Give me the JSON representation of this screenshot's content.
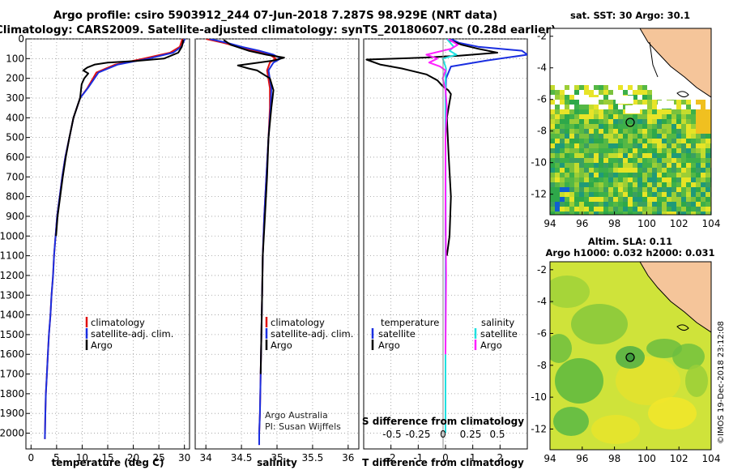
{
  "header": {
    "line1": "Argo profile: csiro 5903912_244 07-Jun-2018 7.287S 98.929E (NRT data)",
    "line2": "Climatology: CARS2009. Satellite-adjusted climatology: synTS_20180607.nc (0.28d earlier)"
  },
  "colors": {
    "climatology": "#e01010",
    "satellite": "#1a2ee0",
    "argo": "#000000",
    "sat_salinity": "#20e0e0",
    "argo_salinity": "#ff20ff",
    "land": "#f5c59a"
  },
  "chart_data": [
    {
      "type": "line",
      "id": "temperature",
      "xlabel": "temperature (deg C)",
      "ylabel": "",
      "xlim": [
        -1,
        31
      ],
      "ylim": [
        2080,
        0
      ],
      "xticks": [
        0,
        5,
        10,
        15,
        20,
        25,
        30
      ],
      "yticks": [
        0,
        100,
        200,
        300,
        400,
        500,
        600,
        700,
        800,
        900,
        1000,
        1100,
        1200,
        1300,
        1400,
        1500,
        1600,
        1700,
        1800,
        1900,
        2000
      ],
      "legend": [
        "climatology",
        "satellite-adj. clim.",
        "Argo"
      ],
      "series": [
        {
          "name": "climatology",
          "color": "#e01010",
          "x": [
            29.6,
            29.1,
            27.2,
            22.0,
            16.5,
            12.8,
            11.0,
            9.6,
            8.3,
            7.5,
            6.7,
            6.1,
            5.6,
            5.1,
            4.8,
            4.5,
            4.3,
            4.0,
            3.8,
            3.5,
            3.3,
            3.1,
            2.9,
            2.8,
            2.7
          ],
          "y": [
            0,
            40,
            70,
            100,
            130,
            170,
            250,
            300,
            400,
            500,
            600,
            700,
            800,
            900,
            1000,
            1100,
            1200,
            1300,
            1400,
            1500,
            1600,
            1700,
            1800,
            1900,
            2030
          ]
        },
        {
          "name": "satellite-adj. clim.",
          "color": "#1a2ee0",
          "x": [
            30.1,
            29.4,
            27.8,
            23.0,
            17.0,
            13.2,
            11.1,
            9.6,
            8.3,
            7.5,
            6.7,
            6.1,
            5.6,
            5.1,
            4.8,
            4.5,
            4.3,
            4.0,
            3.8,
            3.5,
            3.3,
            3.1,
            2.9,
            2.8,
            2.7
          ],
          "y": [
            0,
            40,
            70,
            100,
            130,
            170,
            250,
            300,
            400,
            500,
            600,
            700,
            800,
            900,
            1000,
            1100,
            1200,
            1300,
            1400,
            1500,
            1600,
            1700,
            1800,
            1900,
            2030
          ]
        },
        {
          "name": "Argo",
          "color": "#000000",
          "x": [
            29.8,
            29.5,
            28.8,
            26.0,
            20.5,
            15.0,
            12.5,
            11.0,
            10.2,
            11.2,
            10.4,
            9.9,
            9.6,
            8.3,
            7.5,
            6.8,
            6.2,
            5.7,
            5.2,
            4.9
          ],
          "y": [
            5,
            40,
            70,
            100,
            112,
            120,
            130,
            145,
            160,
            175,
            200,
            230,
            300,
            400,
            500,
            600,
            700,
            800,
            900,
            1000
          ]
        }
      ]
    },
    {
      "type": "line",
      "id": "salinity",
      "xlabel": "salinity",
      "xlim": [
        33.85,
        36.15
      ],
      "ylim": [
        2080,
        0
      ],
      "xticks": [
        34,
        34.5,
        35,
        35.5,
        36
      ],
      "xticklabels": [
        "34",
        "34.5",
        "35",
        "35.5",
        "36"
      ],
      "legend": [
        "climatology",
        "satellite-adj. clim.",
        "Argo"
      ],
      "annotation": [
        "Argo Australia",
        "PI: Susan Wijffels"
      ],
      "series": [
        {
          "name": "climatology",
          "color": "#e01010",
          "x": [
            34.0,
            34.25,
            34.45,
            34.7,
            34.9,
            34.98,
            34.9,
            34.86,
            34.9,
            34.9,
            34.88,
            34.85,
            34.82,
            34.8,
            34.79,
            34.78,
            34.77,
            34.76,
            34.75,
            34.75
          ],
          "y": [
            0,
            20,
            40,
            60,
            80,
            100,
            120,
            160,
            250,
            350,
            500,
            700,
            900,
            1100,
            1300,
            1500,
            1700,
            1900,
            2000,
            2060
          ]
        },
        {
          "name": "satellite-adj. clim.",
          "color": "#1a2ee0",
          "x": [
            34.05,
            34.3,
            34.5,
            34.75,
            34.95,
            35.05,
            34.95,
            34.88,
            34.92,
            34.91,
            34.88,
            34.85,
            34.82,
            34.8,
            34.79,
            34.78,
            34.77,
            34.76,
            34.75,
            34.75
          ],
          "y": [
            0,
            20,
            40,
            60,
            80,
            100,
            120,
            160,
            250,
            350,
            500,
            700,
            900,
            1100,
            1300,
            1500,
            1700,
            1900,
            2000,
            2060
          ]
        },
        {
          "name": "Argo",
          "color": "#000000",
          "x": [
            34.25,
            34.35,
            34.6,
            34.85,
            35.1,
            34.95,
            34.45,
            34.6,
            34.72,
            34.9,
            34.95,
            34.92,
            34.88,
            34.86,
            34.83,
            34.8,
            34.79,
            34.78,
            34.77
          ],
          "y": [
            5,
            30,
            60,
            80,
            95,
            110,
            135,
            150,
            160,
            200,
            260,
            350,
            500,
            700,
            900,
            1100,
            1300,
            1500,
            1700
          ]
        }
      ]
    },
    {
      "type": "line",
      "id": "differences",
      "xlabel": "T difference from climatology",
      "xlabel2": "S difference from climatology",
      "xlim": [
        -3,
        3
      ],
      "ylim": [
        2080,
        0
      ],
      "xticks": [
        -2,
        -1,
        0,
        1,
        2
      ],
      "xticks2": [
        "-0.5",
        "-0.25",
        "0",
        "0.25",
        "0.5"
      ],
      "legend_left_title": "temperature",
      "legend_right_title": "salinity",
      "legend_left": [
        "satellite",
        "Argo"
      ],
      "legend_right": [
        "satellite",
        "Argo"
      ],
      "series": [
        {
          "name": "T satellite",
          "color": "#1a2ee0",
          "x": [
            0.2,
            0.5,
            1.2,
            2.8,
            3.0,
            1.5,
            0.2,
            0.02,
            0.0,
            0.0,
            0.0,
            0.0
          ],
          "y": [
            0,
            20,
            40,
            60,
            80,
            110,
            140,
            200,
            300,
            500,
            800,
            1000
          ]
        },
        {
          "name": "T Argo",
          "color": "#000000",
          "x": [
            0.1,
            0.6,
            1.2,
            1.9,
            0.5,
            -0.8,
            -2.9,
            -2.4,
            -1.6,
            -0.7,
            -0.3,
            -0.1,
            0.1,
            0.2,
            0.05,
            0.12,
            0.2,
            0.15,
            0.05
          ],
          "y": [
            5,
            30,
            50,
            70,
            85,
            95,
            105,
            130,
            150,
            180,
            210,
            240,
            260,
            280,
            400,
            600,
            800,
            1000,
            1100
          ]
        },
        {
          "name": "S satellite",
          "color": "#20e0e0",
          "x": [
            0.05,
            0.3,
            0.15,
            0.4,
            -0.1,
            -0.05,
            0.02,
            0.0,
            0.0,
            0.01,
            0.0,
            0.0,
            0.0
          ],
          "y": [
            0,
            40,
            60,
            80,
            100,
            120,
            150,
            200,
            400,
            800,
            1200,
            1600,
            2000
          ]
        },
        {
          "name": "S Argo",
          "color": "#ff20ff",
          "x": [
            0.1,
            0.45,
            0.2,
            -0.7,
            -0.3,
            -0.6,
            -0.2,
            0.0,
            -0.1,
            0.0,
            0.05,
            0.0,
            0.0,
            0.02,
            0.0
          ],
          "y": [
            0,
            30,
            50,
            80,
            100,
            120,
            140,
            160,
            200,
            260,
            350,
            500,
            800,
            1200,
            1600
          ]
        }
      ]
    },
    {
      "type": "heatmap",
      "id": "sst-map",
      "title": "sat. SST: 30 Argo: 30.1",
      "xticks": [
        94,
        96,
        98,
        100,
        102,
        104
      ],
      "yticks": [
        -2,
        -4,
        -6,
        -8,
        -10,
        -12
      ],
      "xlim": [
        94,
        104
      ],
      "ylim": [
        -13.3,
        -1.5
      ],
      "marker": {
        "lon": 98.929,
        "lat": -7.287
      }
    },
    {
      "type": "heatmap",
      "id": "sla-map",
      "title": "Altim. SLA: 0.11",
      "subtitle": "Argo h1000: 0.032 h2000: 0.031",
      "xticks": [
        94,
        96,
        98,
        100,
        102,
        104
      ],
      "yticks": [
        -2,
        -4,
        -6,
        -8,
        -10,
        -12
      ],
      "xlim": [
        94,
        104
      ],
      "ylim": [
        -13.3,
        -1.5
      ],
      "marker": {
        "lon": 98.929,
        "lat": -7.287
      }
    }
  ],
  "credit": "©IMOS 19-Dec-2018 23:12:08"
}
